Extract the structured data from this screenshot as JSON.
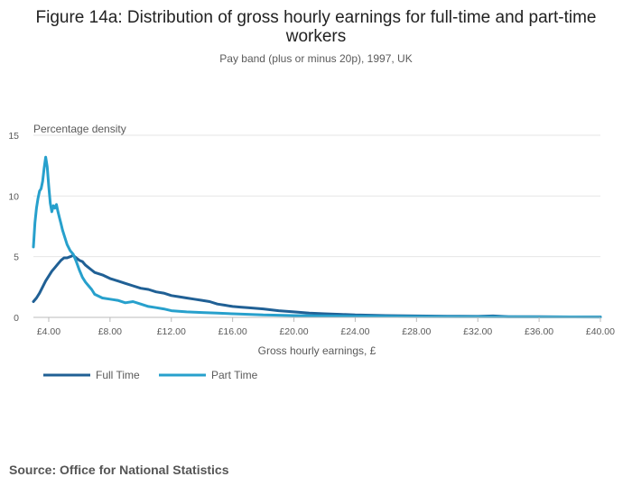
{
  "chart_data": {
    "type": "line",
    "title": "Figure 14a: Distribution of gross hourly earnings for full-time and part-time workers",
    "subtitle": "Pay band (plus or minus 20p), 1997, UK",
    "xlabel": "Gross hourly earnings, £",
    "ylabel": "Percentage density",
    "xlim": [
      3.0,
      40.0
    ],
    "ylim": [
      0,
      15
    ],
    "x_ticks": [
      4,
      8,
      12,
      16,
      20,
      24,
      28,
      32,
      36,
      40
    ],
    "x_tick_labels": [
      "£4.00",
      "£8.00",
      "£12.00",
      "£16.00",
      "£20.00",
      "£24.00",
      "£28.00",
      "£32.00",
      "£36.00",
      "£40.00"
    ],
    "y_ticks": [
      0,
      5,
      10,
      15
    ],
    "y_tick_labels": [
      "0",
      "5",
      "10",
      "15"
    ],
    "legend_position": "bottom-left",
    "series": [
      {
        "name": "Full Time",
        "color": "#206095",
        "x": [
          3.0,
          3.2,
          3.4,
          3.6,
          3.8,
          4.0,
          4.2,
          4.4,
          4.6,
          4.8,
          5.0,
          5.2,
          5.4,
          5.6,
          5.8,
          6.0,
          6.2,
          6.4,
          6.6,
          6.8,
          7.0,
          7.5,
          8.0,
          8.5,
          9.0,
          9.5,
          10.0,
          10.5,
          11.0,
          11.5,
          12.0,
          12.5,
          13.0,
          13.5,
          14.0,
          14.5,
          15.0,
          15.5,
          16.0,
          16.5,
          17.0,
          18.0,
          19.0,
          20.0,
          21.0,
          22.0,
          23.0,
          24.0,
          25.0,
          26.0,
          28.0,
          30.0,
          32.0,
          33.0,
          34.0,
          36.0,
          38.0,
          40.0
        ],
        "values": [
          1.3,
          1.6,
          2.0,
          2.5,
          3.0,
          3.4,
          3.8,
          4.1,
          4.4,
          4.7,
          4.9,
          4.9,
          5.0,
          5.1,
          4.9,
          4.7,
          4.6,
          4.3,
          4.1,
          3.9,
          3.7,
          3.5,
          3.2,
          3.0,
          2.8,
          2.6,
          2.4,
          2.3,
          2.1,
          2.0,
          1.8,
          1.7,
          1.6,
          1.5,
          1.4,
          1.3,
          1.1,
          1.0,
          0.9,
          0.85,
          0.8,
          0.7,
          0.55,
          0.45,
          0.35,
          0.3,
          0.25,
          0.2,
          0.18,
          0.15,
          0.12,
          0.1,
          0.08,
          0.12,
          0.06,
          0.05,
          0.04,
          0.04
        ]
      },
      {
        "name": "Part Time",
        "color": "#27a0cc",
        "x": [
          3.0,
          3.1,
          3.2,
          3.3,
          3.4,
          3.5,
          3.6,
          3.7,
          3.8,
          3.9,
          4.0,
          4.1,
          4.2,
          4.3,
          4.4,
          4.5,
          4.6,
          4.7,
          4.8,
          4.9,
          5.0,
          5.2,
          5.4,
          5.6,
          5.8,
          6.0,
          6.2,
          6.4,
          6.6,
          6.8,
          7.0,
          7.5,
          8.0,
          8.5,
          9.0,
          9.5,
          10.0,
          10.5,
          11.0,
          11.5,
          12.0,
          12.5,
          13.0,
          14.0,
          15.0,
          16.0,
          17.0,
          18.0,
          19.0,
          20.0,
          22.0,
          24.0,
          28.0,
          32.0,
          36.0,
          40.0
        ],
        "values": [
          5.8,
          7.8,
          9.0,
          9.8,
          10.4,
          10.6,
          11.2,
          12.3,
          13.2,
          12.4,
          10.8,
          9.4,
          8.7,
          9.2,
          9.0,
          9.3,
          8.7,
          8.2,
          7.7,
          7.2,
          6.8,
          6.0,
          5.5,
          5.2,
          4.6,
          3.9,
          3.3,
          2.9,
          2.6,
          2.3,
          1.9,
          1.6,
          1.5,
          1.4,
          1.2,
          1.3,
          1.1,
          0.9,
          0.8,
          0.7,
          0.55,
          0.5,
          0.45,
          0.4,
          0.35,
          0.3,
          0.25,
          0.2,
          0.18,
          0.15,
          0.12,
          0.1,
          0.07,
          0.05,
          0.04,
          0.03
        ]
      }
    ],
    "source": "Source: Office for National Statistics"
  }
}
